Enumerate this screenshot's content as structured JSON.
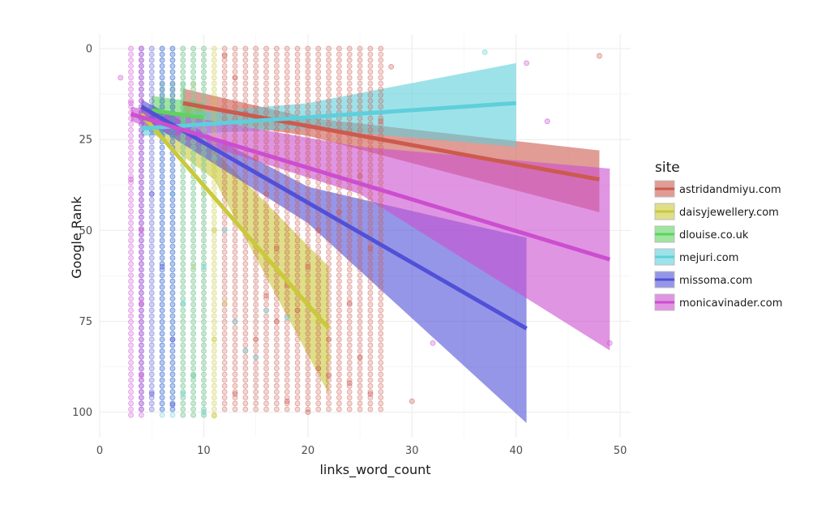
{
  "chart_data": {
    "type": "scatter",
    "xlabel": "links_word_count",
    "ylabel": "Google Rank",
    "xlim": [
      0,
      51
    ],
    "ylim": [
      107,
      -4
    ],
    "y_reversed": true,
    "x_ticks": [
      0,
      10,
      20,
      30,
      40,
      50
    ],
    "x_tick_labels": [
      "0",
      "10",
      "20",
      "30",
      "40",
      "50"
    ],
    "y_ticks": [
      0,
      25,
      50,
      75,
      100
    ],
    "y_tick_labels": [
      "0",
      "25",
      "50",
      "75",
      "100"
    ],
    "grid": true,
    "legend": {
      "title": "site",
      "position": "right",
      "entries": [
        "astridandmiyu.com",
        "daisyjewellery.com",
        "dlouise.co.uk",
        "mejuri.com",
        "missoma.com",
        "monicavinader.com"
      ]
    },
    "series": [
      {
        "name": "astridandmiyu.com",
        "color": "#cc5a4e",
        "x_range": [
          8,
          48
        ],
        "fit": [
          [
            8,
            15
          ],
          [
            48,
            36
          ]
        ],
        "band_upper": [
          [
            8,
            11
          ],
          [
            20,
            19
          ],
          [
            48,
            28
          ]
        ],
        "band_lower": [
          [
            8,
            19
          ],
          [
            20,
            24
          ],
          [
            48,
            45
          ]
        ],
        "points": [
          [
            12,
            2
          ],
          [
            13,
            8
          ],
          [
            14,
            18
          ],
          [
            15,
            30
          ],
          [
            16,
            40
          ],
          [
            17,
            55
          ],
          [
            18,
            65
          ],
          [
            19,
            72
          ],
          [
            20,
            60
          ],
          [
            21,
            50
          ],
          [
            22,
            80
          ],
          [
            22,
            90
          ],
          [
            23,
            45
          ],
          [
            24,
            70
          ],
          [
            25,
            35
          ],
          [
            25,
            85
          ],
          [
            26,
            55
          ],
          [
            26,
            95
          ],
          [
            27,
            20
          ],
          [
            28,
            5
          ],
          [
            16,
            68
          ],
          [
            18,
            97
          ],
          [
            20,
            100
          ],
          [
            21,
            88
          ],
          [
            24,
            92
          ],
          [
            30,
            97
          ],
          [
            48,
            2
          ],
          [
            13,
            95
          ],
          [
            15,
            80
          ],
          [
            17,
            75
          ]
        ],
        "x_columns": [
          12,
          13,
          14,
          15,
          16,
          17,
          18,
          19,
          20,
          21,
          22,
          23,
          24,
          25,
          26,
          27
        ],
        "column_y_range": [
          0,
          100
        ]
      },
      {
        "name": "daisyjewellery.com",
        "color": "#c9c93b",
        "x_range": [
          4,
          22
        ],
        "fit": [
          [
            4,
            18
          ],
          [
            22,
            77
          ]
        ],
        "band_upper": [
          [
            4,
            15
          ],
          [
            11,
            28
          ],
          [
            22,
            60
          ]
        ],
        "band_lower": [
          [
            4,
            21
          ],
          [
            11,
            36
          ],
          [
            22,
            95
          ]
        ],
        "points": [
          [
            9,
            10
          ],
          [
            9,
            60
          ],
          [
            9,
            90
          ],
          [
            10,
            40
          ],
          [
            11,
            50
          ],
          [
            11,
            80
          ],
          [
            11,
            101
          ],
          [
            12,
            70
          ],
          [
            13,
            45
          ],
          [
            20,
            64
          ],
          [
            21,
            75
          ],
          [
            22,
            85
          ]
        ],
        "x_columns": [
          8,
          9,
          10,
          11
        ],
        "column_y_range": [
          0,
          101
        ]
      },
      {
        "name": "dlouise.co.uk",
        "color": "#5fd35f",
        "x_range": [
          5,
          10
        ],
        "fit": [
          [
            5,
            17
          ],
          [
            10,
            19
          ]
        ],
        "band_upper": [
          [
            5,
            13
          ],
          [
            10,
            15
          ]
        ],
        "band_lower": [
          [
            5,
            21
          ],
          [
            10,
            21
          ]
        ],
        "points": [
          [
            6,
            18
          ],
          [
            7,
            16
          ],
          [
            8,
            20
          ],
          [
            9,
            15
          ],
          [
            10,
            18
          ]
        ],
        "x_columns": [
          6,
          7,
          8
        ],
        "column_y_range": [
          10,
          25
        ]
      },
      {
        "name": "mejuri.com",
        "color": "#5ecfdb",
        "x_range": [
          4,
          40
        ],
        "fit": [
          [
            4,
            22
          ],
          [
            40,
            15
          ]
        ],
        "band_upper": [
          [
            4,
            19
          ],
          [
            20,
            15
          ],
          [
            40,
            4
          ]
        ],
        "band_lower": [
          [
            4,
            24
          ],
          [
            20,
            22
          ],
          [
            40,
            27
          ]
        ],
        "points": [
          [
            7,
            40
          ],
          [
            8,
            70
          ],
          [
            9,
            90
          ],
          [
            10,
            60
          ],
          [
            11,
            30
          ],
          [
            12,
            50
          ],
          [
            13,
            75
          ],
          [
            14,
            83
          ],
          [
            15,
            85
          ],
          [
            16,
            72
          ],
          [
            18,
            74
          ],
          [
            37,
            1
          ],
          [
            10,
            100
          ],
          [
            8,
            95
          ]
        ],
        "x_columns": [
          6,
          7,
          8,
          9,
          10
        ],
        "column_y_range": [
          0,
          101
        ]
      },
      {
        "name": "missoma.com",
        "color": "#5050d8",
        "x_range": [
          4,
          41
        ],
        "fit": [
          [
            4,
            16
          ],
          [
            41,
            77
          ]
        ],
        "band_upper": [
          [
            4,
            14
          ],
          [
            20,
            38
          ],
          [
            41,
            52
          ]
        ],
        "band_lower": [
          [
            4,
            19
          ],
          [
            20,
            48
          ],
          [
            41,
            103
          ]
        ],
        "points": [
          [
            5,
            40
          ],
          [
            6,
            60
          ],
          [
            7,
            80
          ],
          [
            5,
            95
          ],
          [
            7,
            98
          ],
          [
            6,
            20
          ]
        ],
        "x_columns": [
          4,
          5,
          6,
          7
        ],
        "column_y_range": [
          0,
          100
        ]
      },
      {
        "name": "monicavinader.com",
        "color": "#cc4ed0",
        "x_range": [
          3,
          49
        ],
        "fit": [
          [
            3,
            18
          ],
          [
            49,
            58
          ]
        ],
        "band_upper": [
          [
            3,
            16
          ],
          [
            25,
            27
          ],
          [
            49,
            33
          ]
        ],
        "band_lower": [
          [
            3,
            20
          ],
          [
            25,
            40
          ],
          [
            49,
            83
          ]
        ],
        "points": [
          [
            3,
            36
          ],
          [
            3,
            15
          ],
          [
            4,
            50
          ],
          [
            4,
            70
          ],
          [
            4,
            90
          ],
          [
            41,
            4
          ],
          [
            43,
            20
          ],
          [
            32,
            81
          ],
          [
            49,
            81
          ],
          [
            2,
            8
          ]
        ],
        "x_columns": [
          3,
          4
        ],
        "column_y_range": [
          0,
          101
        ]
      }
    ]
  }
}
